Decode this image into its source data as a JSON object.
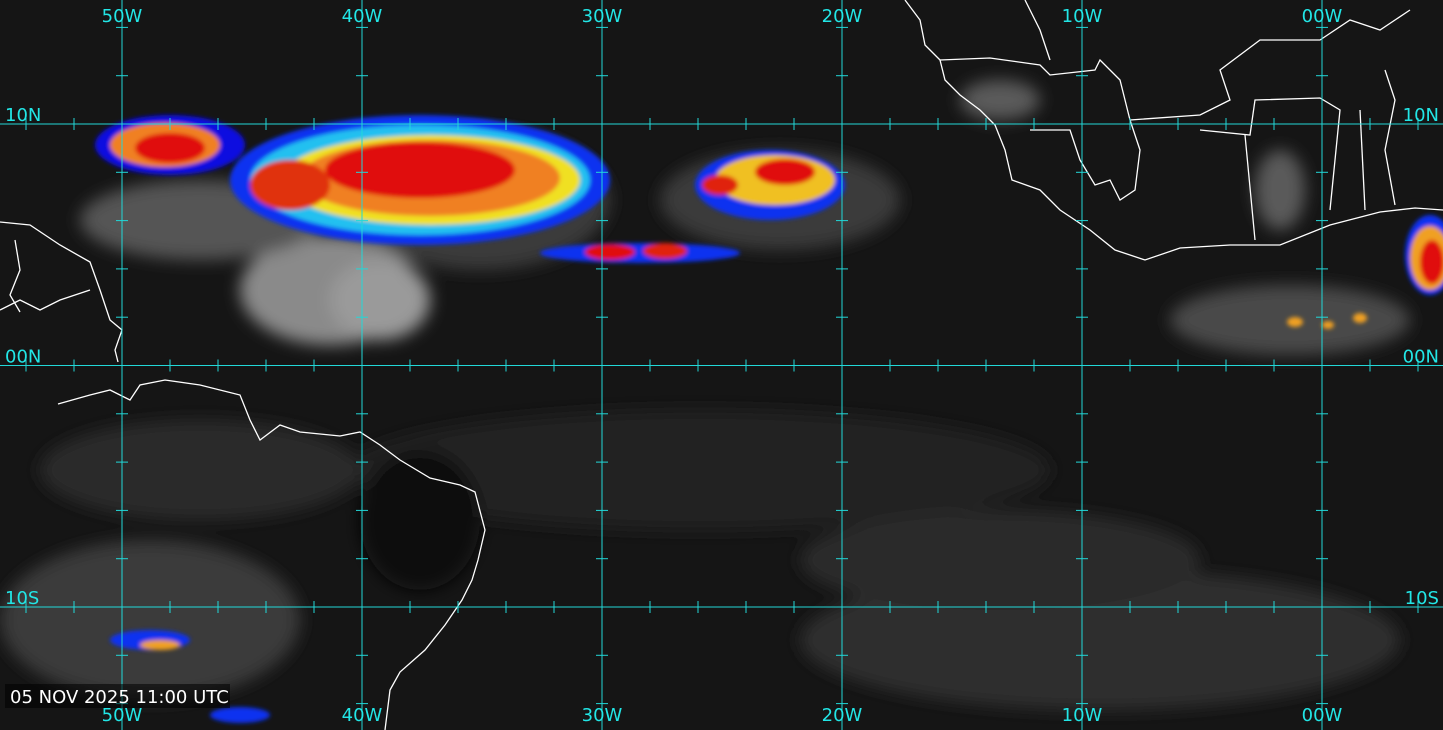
{
  "map": {
    "longitudes": [
      "50W",
      "40W",
      "30W",
      "20W",
      "10W",
      "00W"
    ],
    "latitudes": [
      "10N",
      "00N",
      "10S"
    ],
    "timestamp": "05 NOV 2025 11:00 UTC"
  }
}
